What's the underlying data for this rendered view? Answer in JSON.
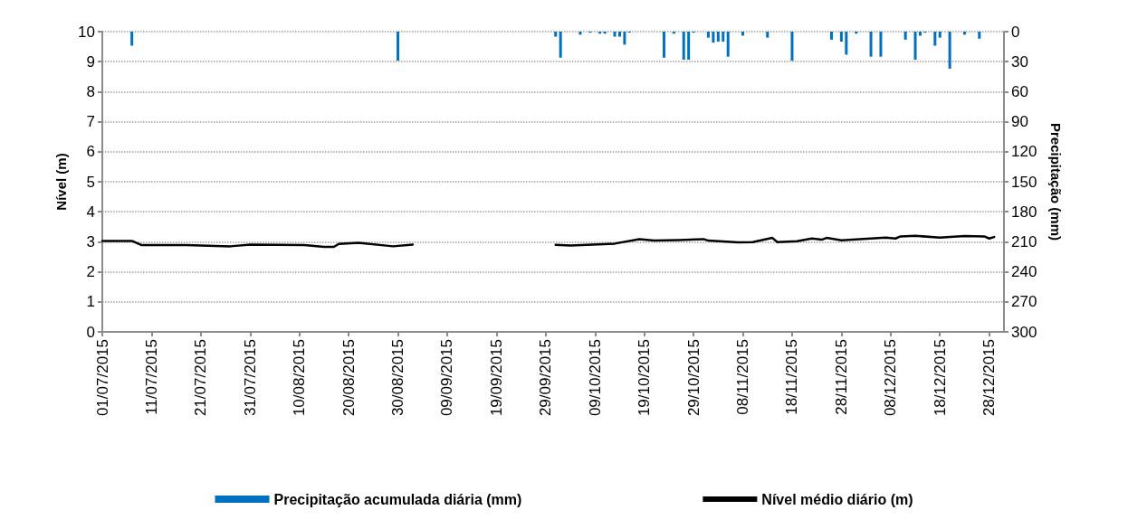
{
  "chart_data": {
    "type": "line",
    "ylabel": "Nível (m)",
    "y2label": "Precipitação (mm)",
    "xlim": [
      "2015-07-01",
      "2015-12-31"
    ],
    "xticks": [
      {
        "value": "2015-07-01",
        "label": "01/07/2015"
      },
      {
        "value": "2015-07-11",
        "label": "11/07/2015"
      },
      {
        "value": "2015-07-21",
        "label": "21/07/2015"
      },
      {
        "value": "2015-07-31",
        "label": "31/07/2015"
      },
      {
        "value": "2015-08-10",
        "label": "10/08/2015"
      },
      {
        "value": "2015-08-20",
        "label": "20/08/2015"
      },
      {
        "value": "2015-08-30",
        "label": "30/08/2015"
      },
      {
        "value": "2015-09-09",
        "label": "09/09/2015"
      },
      {
        "value": "2015-09-19",
        "label": "19/09/2015"
      },
      {
        "value": "2015-09-29",
        "label": "29/09/2015"
      },
      {
        "value": "2015-10-09",
        "label": "09/10/2015"
      },
      {
        "value": "2015-10-19",
        "label": "19/10/2015"
      },
      {
        "value": "2015-10-29",
        "label": "29/10/2015"
      },
      {
        "value": "2015-11-08",
        "label": "08/11/2015"
      },
      {
        "value": "2015-11-18",
        "label": "18/11/2015"
      },
      {
        "value": "2015-11-28",
        "label": "28/11/2015"
      },
      {
        "value": "2015-12-08",
        "label": "08/12/2015"
      },
      {
        "value": "2015-12-18",
        "label": "18/12/2015"
      },
      {
        "value": "2015-12-28",
        "label": "28/12/2015"
      }
    ],
    "ylim": [
      0,
      10
    ],
    "yticks": [
      0,
      1,
      2,
      3,
      4,
      5,
      6,
      7,
      8,
      9,
      10
    ],
    "y2lim": [
      300,
      0
    ],
    "y2ticks": [
      0,
      30,
      60,
      90,
      120,
      150,
      180,
      210,
      240,
      270,
      300
    ],
    "grid": "y",
    "legend": "bottom",
    "marker": "none",
    "line_style": "solid",
    "series": [
      {
        "name": "Precipitação acumulada diária (mm)",
        "type": "bar",
        "axis": "y2",
        "color": "#0070c0",
        "x": [
          "2015-07-07",
          "2015-08-30",
          "2015-10-01",
          "2015-10-02",
          "2015-10-06",
          "2015-10-08",
          "2015-10-10",
          "2015-10-11",
          "2015-10-13",
          "2015-10-14",
          "2015-10-15",
          "2015-10-16",
          "2015-10-23",
          "2015-10-25",
          "2015-10-27",
          "2015-10-28",
          "2015-10-29",
          "2015-11-01",
          "2015-11-02",
          "2015-11-03",
          "2015-11-04",
          "2015-11-05",
          "2015-11-08",
          "2015-11-13",
          "2015-11-18",
          "2015-11-26",
          "2015-11-28",
          "2015-11-29",
          "2015-12-01",
          "2015-12-04",
          "2015-12-06",
          "2015-12-11",
          "2015-12-13",
          "2015-12-14",
          "2015-12-15",
          "2015-12-17",
          "2015-12-18",
          "2015-12-20",
          "2015-12-23",
          "2015-12-26"
        ],
        "values": [
          14,
          29,
          5,
          26,
          3,
          1,
          2,
          2,
          5,
          5,
          13,
          1,
          26,
          2,
          28,
          28,
          1,
          6,
          11,
          10,
          10,
          25,
          4,
          6,
          29,
          8,
          10,
          23,
          2,
          25,
          25,
          8,
          28,
          4,
          1,
          14,
          6,
          37,
          3,
          7
        ]
      },
      {
        "name": "Nível médio diário (m)",
        "axis": "y",
        "color": "#000000",
        "x": [
          "2015-07-01",
          "2015-07-07",
          "2015-07-09",
          "2015-07-18",
          "2015-07-27",
          "2015-07-31",
          "2015-08-11",
          "2015-08-15",
          "2015-08-17",
          "2015-08-18",
          "2015-08-22",
          "2015-08-29",
          "2015-09-02",
          "2015-09-15",
          "2015-10-01",
          "2015-10-04",
          "2015-10-13",
          "2015-10-18",
          "2015-10-21",
          "2015-10-26",
          "2015-10-31",
          "2015-11-01",
          "2015-11-07",
          "2015-11-10",
          "2015-11-14",
          "2015-11-15",
          "2015-11-19",
          "2015-11-22",
          "2015-11-24",
          "2015-11-25",
          "2015-11-28",
          "2015-12-04",
          "2015-12-07",
          "2015-12-09",
          "2015-12-10",
          "2015-12-13",
          "2015-12-18",
          "2015-12-23",
          "2015-12-27",
          "2015-12-28",
          "2015-12-29"
        ],
        "values": [
          3.03,
          3.03,
          2.89,
          2.89,
          2.85,
          2.91,
          2.89,
          2.83,
          2.83,
          2.93,
          2.97,
          2.85,
          2.91,
          null,
          2.9,
          2.88,
          2.94,
          3.09,
          3.04,
          3.06,
          3.09,
          3.04,
          2.98,
          2.99,
          3.13,
          2.99,
          3.02,
          3.11,
          3.07,
          3.13,
          3.05,
          3.11,
          3.14,
          3.11,
          3.18,
          3.2,
          3.14,
          3.19,
          3.18,
          3.11,
          3.16
        ]
      }
    ]
  }
}
